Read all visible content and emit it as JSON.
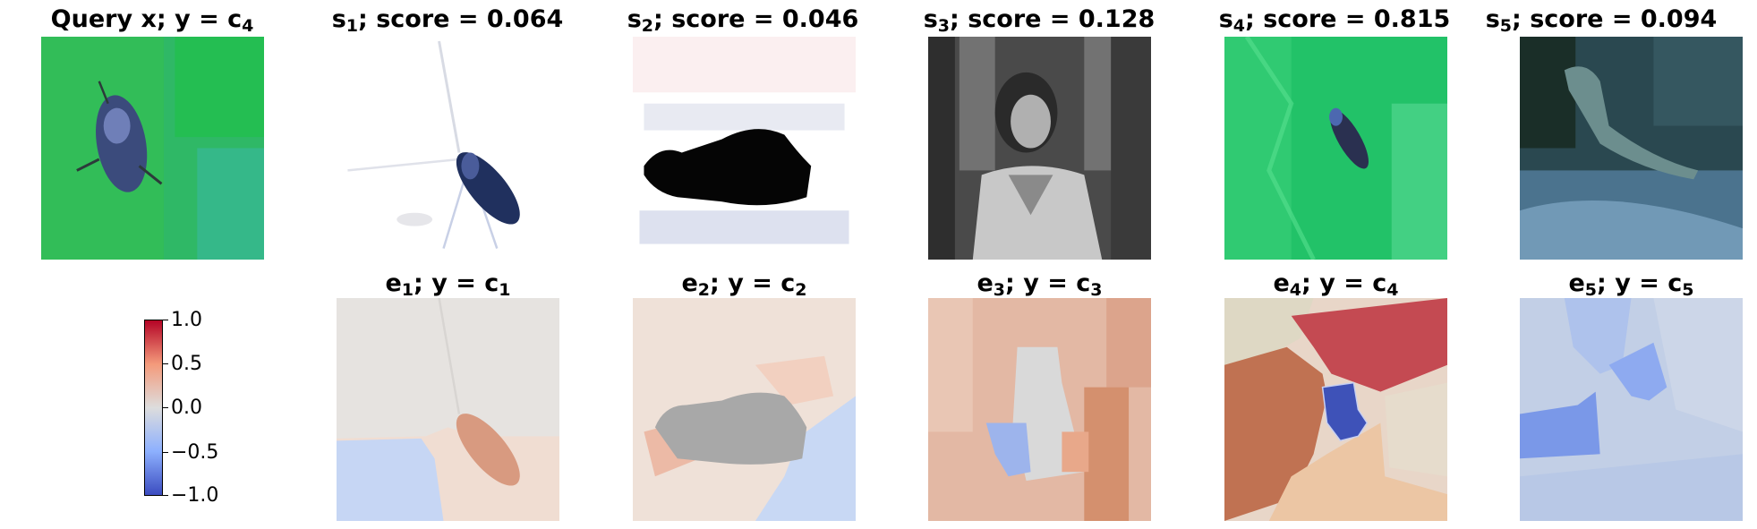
{
  "top_row": [
    {
      "prefix": "Query x; y = c",
      "sub": "4",
      "suffix": ""
    },
    {
      "prefix": "s",
      "sub": "1",
      "suffix": "; score = 0.064"
    },
    {
      "prefix": "s",
      "sub": "2",
      "suffix": "; score = 0.046"
    },
    {
      "prefix": "s",
      "sub": "3",
      "suffix": "; score = 0.128"
    },
    {
      "prefix": "s",
      "sub": "4",
      "suffix": "; score = 0.815"
    },
    {
      "prefix": "s",
      "sub": "5",
      "suffix": "; score = 0.094"
    }
  ],
  "bottom_row": [
    {
      "prefix": "e",
      "sub": "1",
      "mid": "; y = c",
      "sub2": "1"
    },
    {
      "prefix": "e",
      "sub": "2",
      "mid": "; y = c",
      "sub2": "2"
    },
    {
      "prefix": "e",
      "sub": "3",
      "mid": "; y = c",
      "sub2": "3"
    },
    {
      "prefix": "e",
      "sub": "4",
      "mid": "; y = c",
      "sub2": "4"
    },
    {
      "prefix": "e",
      "sub": "5",
      "mid": "; y = c",
      "sub2": "5"
    }
  ],
  "colorbar": {
    "ticks": [
      "1.0",
      "0.5",
      "0.0",
      "−0.5",
      "−1.0"
    ],
    "colors": {
      "max": "#b40426",
      "mid": "#dddddd",
      "min": "#3b4cc0"
    }
  }
}
